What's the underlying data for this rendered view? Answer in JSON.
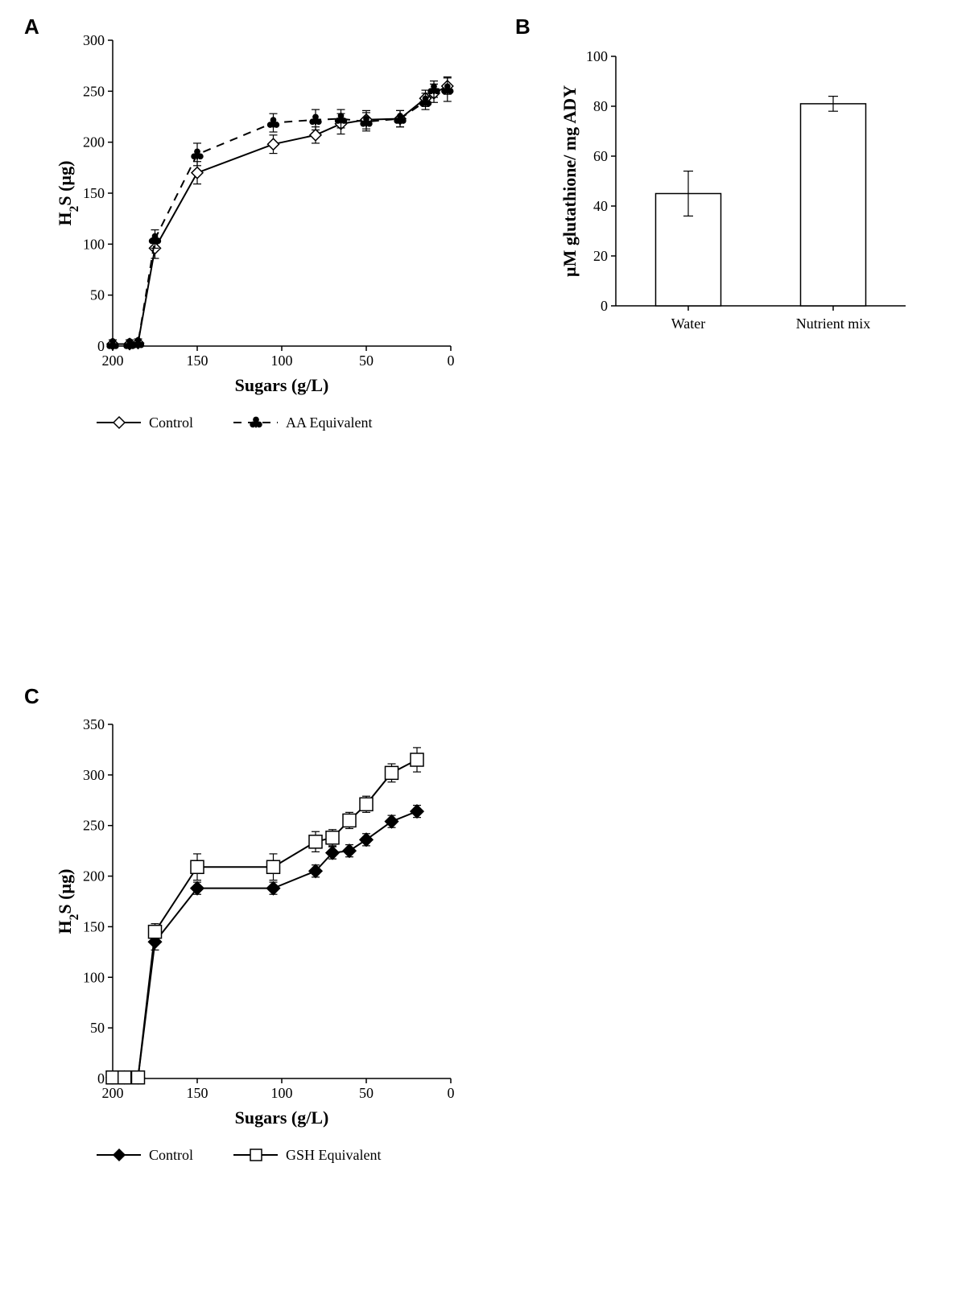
{
  "panelA": {
    "label": "A",
    "type": "line",
    "xlabel": "Sugars (g/L)",
    "ylabel": "H₂S (µg)",
    "xlim": [
      200,
      0
    ],
    "ylim": [
      0,
      300
    ],
    "xticks": [
      200,
      150,
      100,
      50,
      0
    ],
    "yticks": [
      0,
      50,
      100,
      150,
      200,
      250,
      300
    ],
    "label_fontsize": 22,
    "tick_fontsize": 18,
    "line_color": "#000000",
    "line_width": 2,
    "marker_size": 7,
    "error_cap": 5,
    "series": [
      {
        "name": "Control",
        "marker": "diamond-open",
        "dash": "solid",
        "x": [
          200,
          190,
          185,
          175,
          150,
          105,
          80,
          65,
          50,
          30,
          15,
          10,
          2
        ],
        "y": [
          2,
          2,
          3,
          96,
          170,
          198,
          207,
          218,
          222,
          223,
          243,
          248,
          255
        ],
        "err": [
          4,
          4,
          4,
          10,
          11,
          9,
          8,
          10,
          9,
          8,
          8,
          9,
          8
        ]
      },
      {
        "name": "AA Equivalent",
        "marker": "club",
        "dash": "dash",
        "x": [
          200,
          190,
          185,
          175,
          150,
          105,
          80,
          65,
          50,
          30,
          15,
          10,
          2
        ],
        "y": [
          2,
          2,
          3,
          105,
          188,
          219,
          222,
          223,
          220,
          223,
          240,
          252,
          252
        ],
        "err": [
          4,
          4,
          4,
          9,
          11,
          9,
          10,
          9,
          9,
          8,
          8,
          8,
          12
        ]
      }
    ],
    "legend": {
      "items": [
        "Control",
        "AA Equivalent"
      ]
    }
  },
  "panelB": {
    "label": "B",
    "type": "bar",
    "ylabel": "µM glutathione/ mg ADY",
    "ylim": [
      0,
      100
    ],
    "yticks": [
      0,
      20,
      40,
      60,
      80,
      100
    ],
    "categories": [
      "Water",
      "Nutrient mix"
    ],
    "values": [
      45,
      81
    ],
    "errors": [
      9,
      3
    ],
    "bar_fill": "#ffffff",
    "bar_stroke": "#000000",
    "bar_width": 0.45,
    "label_fontsize": 22,
    "tick_fontsize": 18
  },
  "panelC": {
    "label": "C",
    "type": "line",
    "xlabel": "Sugars (g/L)",
    "ylabel": "H₂S (µg)",
    "xlim": [
      200,
      0
    ],
    "ylim": [
      0,
      350
    ],
    "xticks": [
      200,
      150,
      100,
      50,
      0
    ],
    "yticks": [
      0,
      50,
      100,
      150,
      200,
      250,
      300,
      350
    ],
    "label_fontsize": 22,
    "tick_fontsize": 18,
    "line_color": "#000000",
    "line_width": 2,
    "marker_size": 8,
    "error_cap": 5,
    "series": [
      {
        "name": "Control",
        "marker": "diamond-filled",
        "dash": "solid",
        "x": [
          200,
          193,
          185,
          175,
          150,
          105,
          80,
          70,
          60,
          50,
          35,
          20
        ],
        "y": [
          1,
          1,
          1,
          135,
          188,
          188,
          205,
          223,
          225,
          236,
          254,
          264
        ],
        "err": [
          4,
          4,
          4,
          8,
          6,
          6,
          6,
          6,
          6,
          6,
          6,
          6
        ]
      },
      {
        "name": "GSH Equivalent",
        "marker": "square-open",
        "dash": "solid",
        "x": [
          200,
          193,
          185,
          175,
          150,
          105,
          80,
          70,
          60,
          50,
          35,
          20
        ],
        "y": [
          1,
          1,
          1,
          145,
          209,
          209,
          234,
          238,
          255,
          271,
          302,
          315
        ],
        "err": [
          4,
          4,
          4,
          8,
          13,
          13,
          10,
          8,
          8,
          8,
          9,
          12
        ]
      }
    ],
    "legend": {
      "items": [
        "Control",
        "GSH Equivalent"
      ]
    }
  }
}
